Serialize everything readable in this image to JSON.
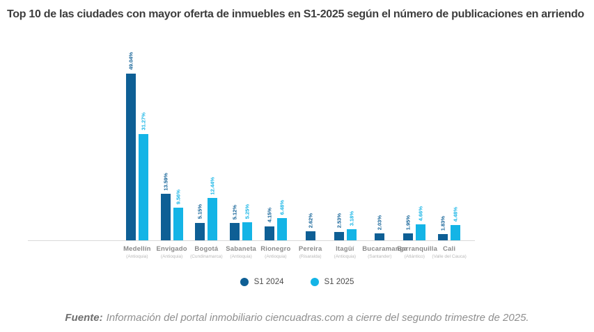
{
  "title": "Top 10 de las ciudades con mayor oferta de inmuebles en S1-2025 según el número de publicaciones en arriendo",
  "colors": {
    "s1_2024": "#0e5f95",
    "s1_2025": "#14b4e6",
    "title_text": "#3d3d3d",
    "axis_line": "#d9d9d9",
    "city_label": "#8a8a8a",
    "region_label": "#b8b8b8",
    "source_text": "#8f8f8f"
  },
  "legend": {
    "items": [
      {
        "label": "S1 2024",
        "color": "#0e5f95"
      },
      {
        "label": "S1 2025",
        "color": "#14b4e6"
      }
    ]
  },
  "source": {
    "prefix": "Fuente:",
    "text": "Información del portal inmobiliario ciencuadras.com a cierre del segundo trimestre de 2025."
  },
  "chart_data": {
    "type": "bar",
    "title": "Top 10 de las ciudades con mayor oferta de inmuebles en S1-2025 según el número de publicaciones en arriendo",
    "xlabel": "",
    "ylabel": "",
    "ylim": [
      0,
      50
    ],
    "grid": false,
    "legend_position": "bottom",
    "value_unit": "%",
    "categories": [
      "Medellín",
      "Envigado",
      "Bogotá",
      "Sabaneta",
      "Rionegro",
      "Pereira",
      "Itagüí",
      "Bucaramanga",
      "Barranquilla",
      "Cali"
    ],
    "category_sublabels": [
      "(Antioquia)",
      "(Antioquia)",
      "(Cundinamarca)",
      "(Antioquia)",
      "(Antioquia)",
      "(Risaralda)",
      "(Antioquia)",
      "(Santander)",
      "(Atlántico)",
      "(Valle del Cauca)"
    ],
    "series": [
      {
        "name": "S1 2024",
        "color": "#0e5f95",
        "values": [
          49.04,
          13.59,
          5.15,
          5.12,
          4.15,
          2.62,
          2.53,
          2.03,
          1.95,
          1.83
        ],
        "labels": [
          "49.04%",
          "13.59%",
          "5.15%",
          "5.12%",
          "4.15%",
          "2.62%",
          "2.53%",
          "2.03%",
          "1.95%",
          "1.83%"
        ]
      },
      {
        "name": "S1 2025",
        "color": "#14b4e6",
        "values": [
          31.27,
          9.56,
          12.44,
          5.25,
          6.48,
          null,
          3.18,
          null,
          4.66,
          4.48
        ],
        "labels": [
          "31.27%",
          "9.56%",
          "12.44%",
          "5.25%",
          "6.48%",
          null,
          "3.18%",
          null,
          "4.66%",
          "4.48%"
        ]
      }
    ]
  }
}
